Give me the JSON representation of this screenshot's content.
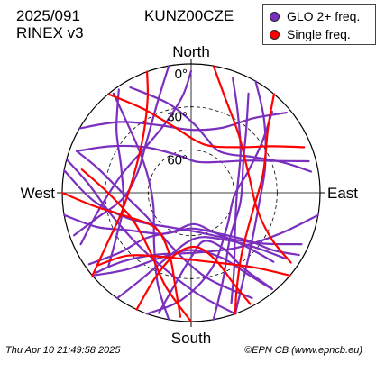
{
  "header": {
    "date": "2025/091",
    "format": "RINEX v3",
    "station": "KUNZ00CZE"
  },
  "legend": [
    {
      "label": "GLO 2+ freq.",
      "color": "#7b2fbe"
    },
    {
      "label": "Single freq.",
      "color": "#ff0000"
    }
  ],
  "footer": {
    "time": "Thu Apr 10 21:49:58 2025",
    "credit": "©EPN CB (www.epncb.eu)"
  },
  "chart_data": {
    "type": "scatter",
    "projection": "polar skyplot",
    "directions": {
      "north": "North",
      "south": "South",
      "east": "East",
      "west": "West"
    },
    "elevation_rings": [
      {
        "elevation": 0,
        "label": "0°"
      },
      {
        "elevation": 30,
        "label": "30°"
      },
      {
        "elevation": 60,
        "label": "60°"
      }
    ],
    "series": [
      {
        "name": "GLO 2+ freq.",
        "color": "#7b2fbe",
        "tracks": [
          [
            [
              330,
              5
            ],
            [
              345,
              25
            ],
            [
              0,
              40
            ],
            [
              15,
              50
            ],
            [
              30,
              55
            ],
            [
              45,
              52
            ],
            [
              60,
              40
            ],
            [
              72,
              22
            ],
            [
              80,
              5
            ]
          ],
          [
            [
              290,
              5
            ],
            [
              300,
              25
            ],
            [
              315,
              45
            ],
            [
              340,
              62
            ],
            [
              10,
              68
            ],
            [
              40,
              62
            ],
            [
              60,
              45
            ],
            [
              70,
              25
            ],
            [
              75,
              5
            ]
          ],
          [
            [
              300,
              0
            ],
            [
              315,
              20
            ],
            [
              335,
              38
            ],
            [
              0,
              46
            ],
            [
              25,
              40
            ],
            [
              40,
              22
            ],
            [
              50,
              3
            ]
          ],
          [
            [
              30,
              0
            ],
            [
              45,
              18
            ],
            [
              70,
              35
            ],
            [
              100,
              42
            ],
            [
              130,
              35
            ],
            [
              150,
              18
            ],
            [
              160,
              0
            ]
          ],
          [
            [
              20,
              5
            ],
            [
              30,
              25
            ],
            [
              50,
              45
            ],
            [
              90,
              58
            ],
            [
              130,
              50
            ],
            [
              150,
              30
            ],
            [
              160,
              8
            ]
          ],
          [
            [
              200,
              0
            ],
            [
              185,
              15
            ],
            [
              165,
              35
            ],
            [
              135,
              55
            ],
            [
              95,
              60
            ],
            [
              70,
              48
            ],
            [
              55,
              30
            ],
            [
              45,
              10
            ]
          ],
          [
            [
              160,
              0
            ],
            [
              175,
              18
            ],
            [
              195,
              32
            ],
            [
              225,
              38
            ],
            [
              255,
              32
            ],
            [
              275,
              18
            ],
            [
              285,
              0
            ]
          ],
          [
            [
              150,
              5
            ],
            [
              170,
              30
            ],
            [
              200,
              50
            ],
            [
              240,
              55
            ],
            [
              270,
              42
            ],
            [
              285,
              22
            ],
            [
              290,
              5
            ]
          ],
          [
            [
              260,
              0
            ],
            [
              250,
              20
            ],
            [
              240,
              38
            ],
            [
              215,
              55
            ],
            [
              180,
              65
            ],
            [
              145,
              55
            ],
            [
              130,
              38
            ],
            [
              125,
              20
            ],
            [
              120,
              3
            ]
          ],
          [
            [
              230,
              0
            ],
            [
              220,
              20
            ],
            [
              205,
              40
            ],
            [
              180,
              50
            ],
            [
              155,
              40
            ],
            [
              145,
              20
            ],
            [
              140,
              2
            ]
          ],
          [
            [
              190,
              0
            ],
            [
              200,
              22
            ],
            [
              215,
              45
            ],
            [
              250,
              62
            ],
            [
              290,
              58
            ],
            [
              310,
              42
            ],
            [
              318,
              22
            ],
            [
              322,
              2
            ]
          ],
          [
            [
              245,
              5
            ],
            [
              260,
              25
            ],
            [
              285,
              40
            ],
            [
              315,
              45
            ],
            [
              340,
              38
            ],
            [
              355,
              22
            ],
            [
              360,
              5
            ]
          ],
          [
            [
              170,
              0
            ],
            [
              160,
              25
            ],
            [
              140,
              48
            ],
            [
              100,
              55
            ],
            [
              60,
              48
            ],
            [
              40,
              30
            ],
            [
              30,
              10
            ]
          ],
          [
            [
              215,
              0
            ],
            [
              210,
              20
            ],
            [
              200,
              42
            ],
            [
              175,
              58
            ],
            [
              145,
              50
            ],
            [
              130,
              30
            ],
            [
              125,
              10
            ]
          ],
          [
            [
              280,
              0
            ],
            [
              265,
              22
            ],
            [
              245,
              45
            ],
            [
              210,
              62
            ],
            [
              170,
              62
            ],
            [
              140,
              48
            ],
            [
              125,
              28
            ],
            [
              115,
              5
            ]
          ],
          [
            [
              195,
              3
            ],
            [
              190,
              25
            ],
            [
              180,
              45
            ],
            [
              165,
              55
            ],
            [
              150,
              45
            ],
            [
              145,
              25
            ],
            [
              140,
              3
            ]
          ],
          [
            [
              235,
              3
            ],
            [
              230,
              25
            ],
            [
              225,
              45
            ],
            [
              205,
              60
            ],
            [
              175,
              68
            ],
            [
              150,
              58
            ],
            [
              135,
              38
            ],
            [
              130,
              15
            ]
          ],
          [
            [
              350,
              0
            ],
            [
              340,
              22
            ],
            [
              320,
              42
            ],
            [
              290,
              50
            ],
            [
              265,
              42
            ],
            [
              255,
              22
            ],
            [
              250,
              3
            ]
          ],
          [
            [
              100,
              0
            ],
            [
              115,
              22
            ],
            [
              140,
              40
            ],
            [
              175,
              48
            ],
            [
              210,
              40
            ],
            [
              225,
              22
            ],
            [
              230,
              3
            ]
          ],
          [
            [
              325,
              2
            ],
            [
              310,
              22
            ],
            [
              290,
              38
            ],
            [
              260,
              42
            ],
            [
              240,
              30
            ],
            [
              228,
              12
            ]
          ]
        ]
      },
      {
        "name": "Single freq.",
        "color": "#ff0000",
        "tracks": [
          [
            [
              320,
              0
            ],
            [
              330,
              22
            ],
            [
              345,
              42
            ],
            [
              15,
              55
            ],
            [
              45,
              45
            ],
            [
              60,
              25
            ],
            [
              68,
              5
            ]
          ],
          [
            [
              40,
              0
            ],
            [
              50,
              20
            ],
            [
              75,
              38
            ],
            [
              110,
              45
            ],
            [
              140,
              35
            ],
            [
              155,
              15
            ],
            [
              160,
              0
            ]
          ],
          [
            [
              180,
              0
            ],
            [
              195,
              22
            ],
            [
              215,
              40
            ],
            [
              245,
              45
            ],
            [
              270,
              32
            ],
            [
              282,
              12
            ]
          ],
          [
            [
              270,
              0
            ],
            [
              262,
              22
            ],
            [
              250,
              42
            ],
            [
              225,
              55
            ],
            [
              200,
              45
            ],
            [
              190,
              25
            ],
            [
              185,
              3
            ]
          ],
          [
            [
              205,
              0
            ],
            [
              203,
              25
            ],
            [
              195,
              45
            ],
            [
              175,
              52
            ],
            [
              160,
              40
            ],
            [
              155,
              20
            ],
            [
              152,
              2
            ]
          ],
          [
            [
              230,
              0
            ],
            [
              238,
              20
            ],
            [
              255,
              40
            ],
            [
              290,
              48
            ],
            [
              320,
              38
            ],
            [
              335,
              18
            ],
            [
              340,
              0
            ]
          ],
          [
            [
              130,
              0
            ],
            [
              140,
              22
            ],
            [
              165,
              40
            ],
            [
              200,
              42
            ],
            [
              225,
              28
            ],
            [
              232,
              8
            ]
          ],
          [
            [
              10,
              0
            ],
            [
              20,
              20
            ],
            [
              40,
              38
            ],
            [
              75,
              48
            ],
            [
              105,
              42
            ],
            [
              120,
              25
            ],
            [
              125,
              5
            ]
          ]
        ]
      }
    ]
  }
}
